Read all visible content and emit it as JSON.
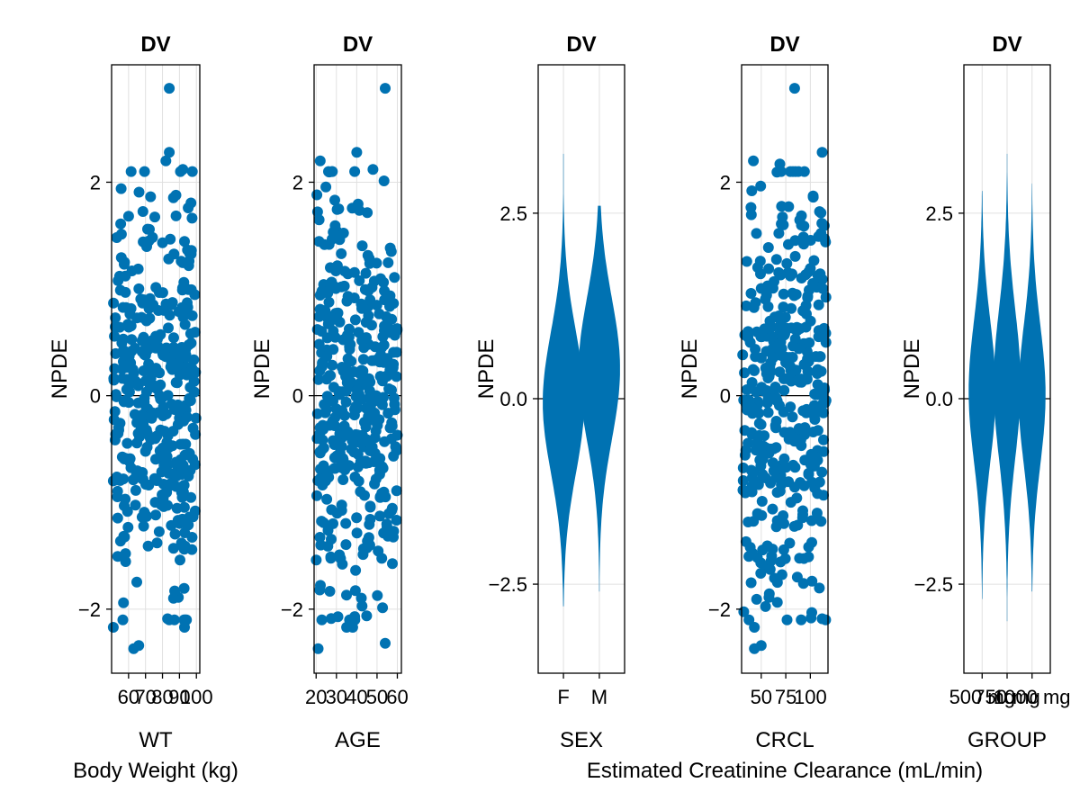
{
  "colors": {
    "marker": "#0072b2",
    "grid": "#e0e0e0",
    "zero_line": "#000000",
    "frame": "#000000"
  },
  "footnotes": {
    "wt": "Body Weight (kg)",
    "crcl": "Estimated Creatinine Clearance (mL/min)"
  },
  "chart_data": [
    {
      "type": "scatter",
      "title": "DV",
      "xlabel": "WT",
      "ylabel": "NPDE",
      "xlim": [
        50,
        102
      ],
      "ylim": [
        -2.6,
        3.1
      ],
      "xticks": [
        60,
        70,
        80,
        90,
        100
      ],
      "xtick_labels": [
        "60",
        "70",
        "80",
        "90",
        "100"
      ],
      "yticks": [
        -2,
        0,
        2
      ],
      "ytick_labels": [
        "−2",
        "0",
        "2"
      ],
      "points_note": "approx. 400 observations, NPDE roughly N(0,1) across WT range 50–100 kg",
      "highlight_points": [
        {
          "x": 84,
          "y": 2.88
        },
        {
          "x": 51,
          "y": -2.17
        },
        {
          "x": 63,
          "y": -2.37
        },
        {
          "x": 66,
          "y": -2.34
        },
        {
          "x": 57,
          "y": -1.94
        },
        {
          "x": 93,
          "y": -2.17
        },
        {
          "x": 83,
          "y": -2.09
        },
        {
          "x": 84,
          "y": 2.28
        },
        {
          "x": 82,
          "y": 2.2
        },
        {
          "x": 92,
          "y": 2.12
        }
      ]
    },
    {
      "type": "scatter",
      "title": "DV",
      "xlabel": "AGE",
      "ylabel": "NPDE",
      "xlim": [
        19,
        62
      ],
      "ylim": [
        -2.6,
        3.1
      ],
      "xticks": [
        20,
        30,
        40,
        50,
        60
      ],
      "xtick_labels": [
        "20",
        "30",
        "40",
        "50",
        "60"
      ],
      "yticks": [
        -2,
        0,
        2
      ],
      "ytick_labels": [
        "−2",
        "0",
        "2"
      ],
      "points_note": "approx. 400 observations, NPDE roughly N(0,1) across AGE range 20–60 years",
      "highlight_points": [
        {
          "x": 54,
          "y": 2.88
        },
        {
          "x": 21,
          "y": -2.37
        },
        {
          "x": 54,
          "y": -2.32
        },
        {
          "x": 35,
          "y": -2.17
        },
        {
          "x": 38,
          "y": -2.17
        },
        {
          "x": 39,
          "y": -2.07
        },
        {
          "x": 22,
          "y": 2.2
        },
        {
          "x": 40,
          "y": 2.28
        },
        {
          "x": 48,
          "y": 2.12
        }
      ]
    },
    {
      "type": "violin",
      "title": "DV",
      "xlabel": "SEX",
      "ylabel": "NPDE",
      "categories": [
        "F",
        "M"
      ],
      "ylim": [
        -3.7,
        4.5
      ],
      "yticks": [
        -2.5,
        0,
        2.5
      ],
      "ytick_labels": [
        "−2.5",
        "0.0",
        "2.5"
      ],
      "series": [
        {
          "name": "F",
          "center": -0.05,
          "spread": 0.95,
          "min": -2.8,
          "max": 3.3
        },
        {
          "name": "M",
          "center": 0.4,
          "spread": 0.95,
          "min": -2.6,
          "max": 2.6
        }
      ]
    },
    {
      "type": "scatter",
      "title": "DV",
      "xlabel": "CRCL",
      "ylabel": "NPDE",
      "xlim": [
        30,
        118
      ],
      "ylim": [
        -2.6,
        3.1
      ],
      "xticks": [
        50,
        75,
        100
      ],
      "xtick_labels": [
        "50",
        "75",
        "100"
      ],
      "yticks": [
        -2,
        0,
        2
      ],
      "ytick_labels": [
        "−2",
        "0",
        "2"
      ],
      "points_note": "approx. 400 observations, NPDE roughly N(0,1) across CRCL range 30–115 mL/min",
      "highlight_points": [
        {
          "x": 84,
          "y": 2.88
        },
        {
          "x": 43,
          "y": -2.37
        },
        {
          "x": 50,
          "y": -2.34
        },
        {
          "x": 43,
          "y": -2.17
        },
        {
          "x": 112,
          "y": 2.28
        },
        {
          "x": 42,
          "y": 2.2
        },
        {
          "x": 69,
          "y": 2.17
        },
        {
          "x": 112,
          "y": -2.09
        }
      ]
    },
    {
      "type": "violin",
      "title": "DV",
      "xlabel": "GROUP",
      "ylabel": "NPDE",
      "categories": [
        "500 mg",
        "750 mg",
        "1000 mg"
      ],
      "xtick_labels": [
        "500 mg",
        "750 mg",
        "1000 mg"
      ],
      "ylim": [
        -3.7,
        4.5
      ],
      "yticks": [
        -2.5,
        0,
        2.5
      ],
      "ytick_labels": [
        "−2.5",
        "0.0",
        "2.5"
      ],
      "series": [
        {
          "name": "500 mg",
          "center": 0.1,
          "spread": 0.95,
          "min": -2.7,
          "max": 2.8
        },
        {
          "name": "750 mg",
          "center": 0.2,
          "spread": 1.0,
          "min": -3.0,
          "max": 3.3
        },
        {
          "name": "1000 mg",
          "center": 0.05,
          "spread": 0.95,
          "min": -2.6,
          "max": 2.9
        }
      ]
    }
  ]
}
